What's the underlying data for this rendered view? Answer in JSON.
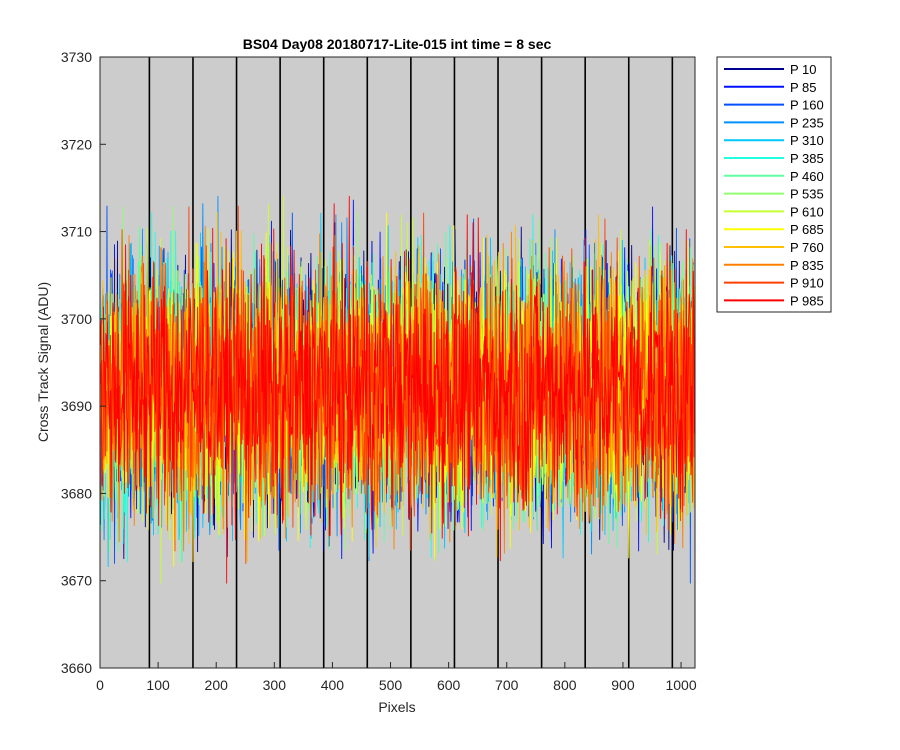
{
  "chart_data": {
    "type": "line",
    "title": "BS04 Day08 20180717-Lite-015 int time = 8 sec",
    "xlabel": "Pixels",
    "ylabel": "Cross Track Signal (ADU)",
    "xlim": [
      0,
      1024
    ],
    "ylim": [
      3660,
      3730
    ],
    "xticks": [
      0,
      100,
      200,
      300,
      400,
      500,
      600,
      700,
      800,
      900,
      1000
    ],
    "yticks": [
      3660,
      3670,
      3680,
      3690,
      3700,
      3710,
      3720,
      3730
    ],
    "plot_background": "#cccccc",
    "grid": false,
    "legend_position": "outside-top-right",
    "vertical_markers": [
      85,
      160,
      235,
      310,
      385,
      460,
      535,
      610,
      685,
      760,
      835,
      910,
      985
    ],
    "signal_level": 3692,
    "typical_noise_range": [
      3670,
      3715
    ],
    "series": [
      {
        "name": "P 10",
        "color": "#00008f"
      },
      {
        "name": "P 85",
        "color": "#0010ff"
      },
      {
        "name": "P 160",
        "color": "#0050ff"
      },
      {
        "name": "P 235",
        "color": "#0090ff"
      },
      {
        "name": "P 310",
        "color": "#00c8ff"
      },
      {
        "name": "P 385",
        "color": "#20ffdf"
      },
      {
        "name": "P 460",
        "color": "#60ffa0"
      },
      {
        "name": "P 535",
        "color": "#90ff70"
      },
      {
        "name": "P 610",
        "color": "#c8ff30"
      },
      {
        "name": "P 685",
        "color": "#ffff00"
      },
      {
        "name": "P 760",
        "color": "#ffc000"
      },
      {
        "name": "P 835",
        "color": "#ff8000"
      },
      {
        "name": "P 910",
        "color": "#ff4000"
      },
      {
        "name": "P 985",
        "color": "#ff0000"
      }
    ]
  }
}
